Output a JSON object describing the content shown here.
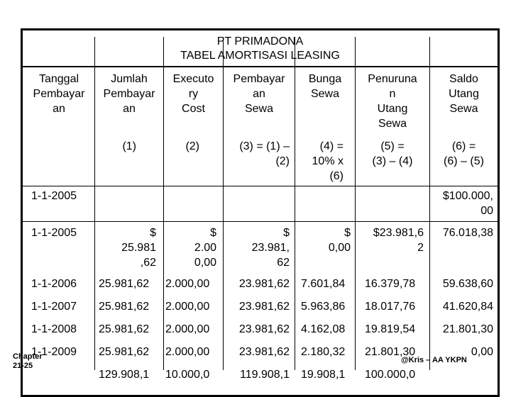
{
  "title": {
    "line1": "PT PRIMADONA",
    "line2": "TABEL AMORTISASI LEASING"
  },
  "headers": {
    "tanggal": "Tanggal\nPembayar\nan",
    "jumlah": "Jumlah\nPembayar\nan",
    "executory": "Executo\nry\nCost",
    "pembayaran_sewa": "Pembayar\nan\nSewa",
    "bunga": "Bunga\nSewa",
    "penurunan": "Penuruna\nn\nUtang\nSewa",
    "saldo": "Saldo\nUtang\nSewa"
  },
  "formulas": {
    "jumlah": "(1)",
    "executory": "(2)",
    "pembayaran_sewa": "(3) = (1) –\n(2)",
    "bunga": "(4) =\n10% x\n(6)",
    "penurunan": "(5) =\n(3) – (4)",
    "saldo": "(6) =\n(6) – (5)"
  },
  "rows": [
    {
      "tanggal": "1-1-2005",
      "jumlah": "",
      "executory": "",
      "pembayaran": "",
      "bunga": "",
      "penurunan": "",
      "saldo": "$100.000,\n00"
    },
    {
      "tanggal": "1-1-2005",
      "jumlah": "$\n25.981\n,62",
      "executory": "$\n2.00\n0,00",
      "pembayaran": "$\n23.981,\n62",
      "bunga": "$\n0,00",
      "penurunan": "$23.981,6\n2",
      "saldo": "76.018,38"
    },
    {
      "tanggal": "1-1-2006",
      "jumlah": "25.981,62",
      "executory": "2.000,00",
      "pembayaran": "23.981,62",
      "bunga": "7.601,84",
      "penurunan": "16.379,78",
      "saldo": "59.638,60"
    },
    {
      "tanggal": "1-1-2007",
      "jumlah": "25.981,62",
      "executory": "2.000,00",
      "pembayaran": "23.981,62",
      "bunga": "5.963,86",
      "penurunan": "18.017,76",
      "saldo": "41.620,84"
    },
    {
      "tanggal": "1-1-2008",
      "jumlah": "25.981,62",
      "executory": "2.000,00",
      "pembayaran": "23.981,62",
      "bunga": "4.162,08",
      "penurunan": "19.819,54",
      "saldo": "21.801,30"
    },
    {
      "tanggal": "1-1-2009",
      "jumlah": "25.981,62",
      "executory": "2.000,00",
      "pembayaran": "23.981,62",
      "bunga": "2.180,32",
      "penurunan": "21.801,30",
      "saldo": "0,00"
    }
  ],
  "totals": {
    "jumlah": "129.908,1",
    "executory": "10.000,0",
    "pembayaran": "119.908,1",
    "bunga": "19.908,1",
    "penurunan": "100.000,0"
  },
  "footer": {
    "chapter": "Chapter\n21-25",
    "credit": "@Kris – AA YKPN"
  }
}
